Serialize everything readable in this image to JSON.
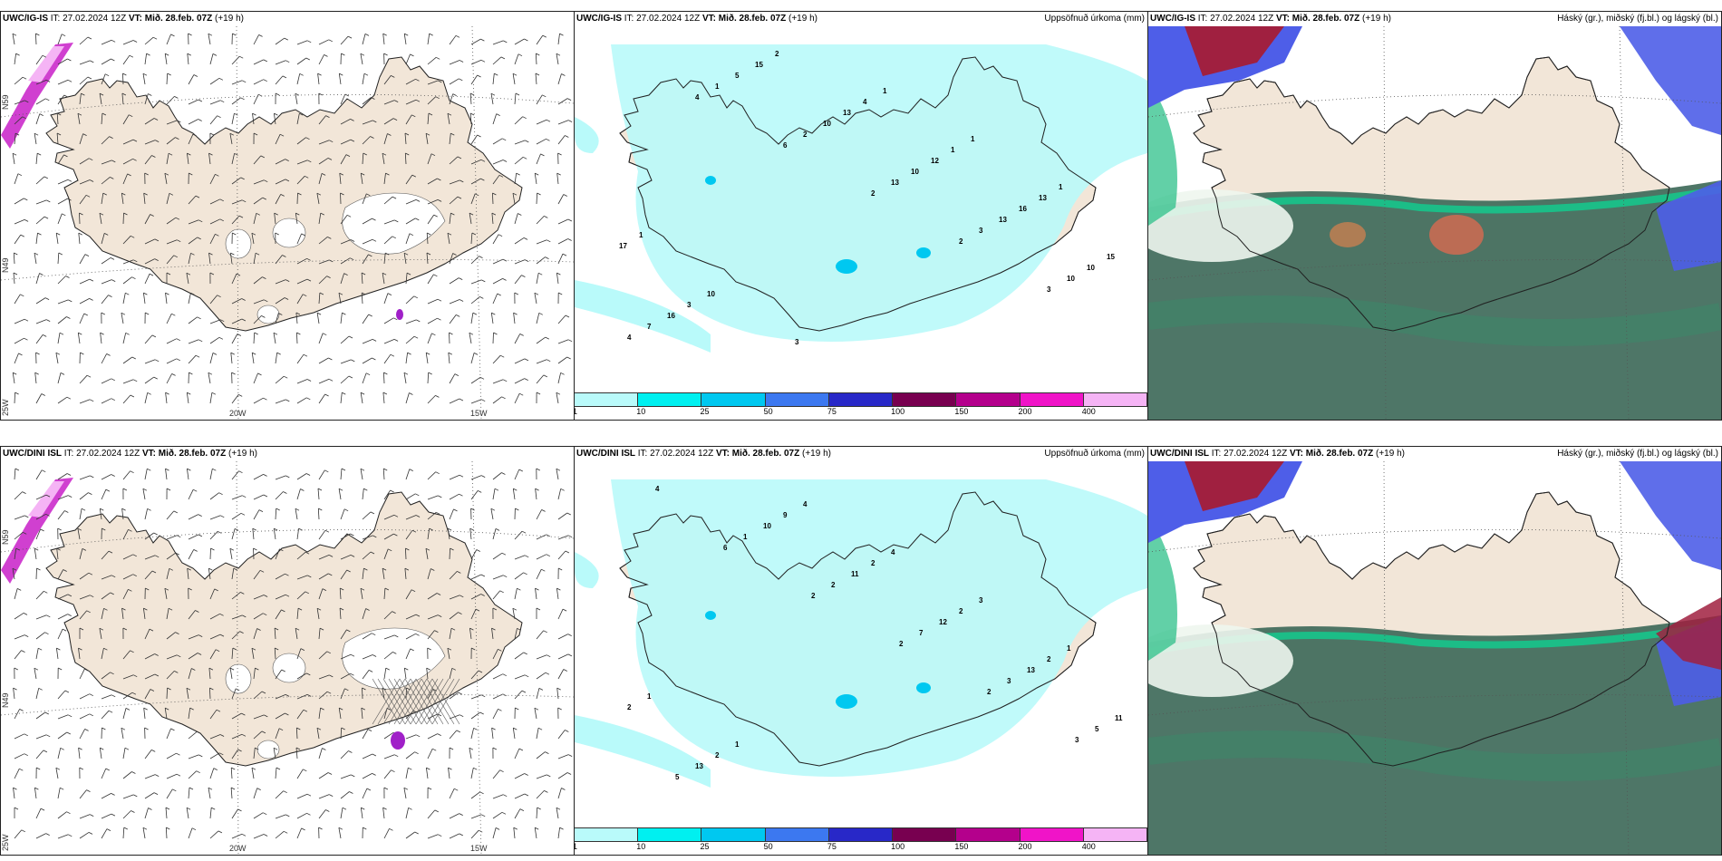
{
  "panels": {
    "top_left": {
      "model": "UWC/IG-IS",
      "right_title": ""
    },
    "top_mid": {
      "model": "UWC/IG-IS",
      "right_title": "Uppsöfnuð úrkoma (mm)"
    },
    "top_right": {
      "model": "UWC/IG-IS",
      "right_title": "Háský (gr.), miðský (fj.bl.) og lágský (bl.)"
    },
    "bot_left": {
      "model": "UWC/DINI ISL",
      "right_title": ""
    },
    "bot_mid": {
      "model": "UWC/DINI ISL",
      "right_title": "Uppsöfnuð úrkoma (mm)"
    },
    "bot_right": {
      "model": "UWC/DINI ISL",
      "right_title": "Háský (gr.), miðský (fj.bl.) og lágský (bl.)"
    }
  },
  "run": {
    "it_label": "IT:",
    "it_value": "27.02.2024 12Z",
    "vt_label": "VT:",
    "vt_value": "Mið. 28.feb. 07Z",
    "lead": "(+19 h)"
  },
  "gridlabels": {
    "lon20": "20W",
    "lon15": "15W",
    "lat65": "N59",
    "lat64": "N49",
    "lat63": "25W"
  },
  "colorbar": {
    "colors": [
      "#b9fafa",
      "#00f0f0",
      "#00c8f0",
      "#3c78f0",
      "#2828c8",
      "#780050",
      "#b4008c",
      "#f014c8",
      "#f5b4f5"
    ],
    "ticks": [
      "1",
      "10",
      "25",
      "50",
      "75",
      "100",
      "150",
      "200",
      "400"
    ]
  },
  "precip_numbers_top": [
    "4",
    "6",
    "2",
    "2",
    "3",
    "4",
    "1",
    "2",
    "13",
    "3",
    "10",
    "7",
    "5",
    "10",
    "10",
    "13",
    "10",
    "16",
    "15",
    "13",
    "12",
    "16",
    "15",
    "3",
    "2",
    "4",
    "1",
    "13",
    "17",
    "10",
    "3",
    "1",
    "1",
    "1",
    "1"
  ],
  "precip_numbers_bot": [
    "6",
    "2",
    "2",
    "2",
    "3",
    "4",
    "1",
    "2",
    "7",
    "3",
    "5",
    "5",
    "10",
    "11",
    "12",
    "13",
    "11",
    "13",
    "9",
    "2",
    "2",
    "2",
    "2",
    "2",
    "4",
    "4",
    "3",
    "1",
    "1",
    "1"
  ],
  "colors": {
    "land": "#f2e6d8",
    "precip_light": "#b9fafa",
    "cloud_high_green": "#4a8c6e",
    "cloud_dark": "#3f6a5a",
    "cloud_blue": "#4e5ee8",
    "cloud_red": "#a02040"
  }
}
